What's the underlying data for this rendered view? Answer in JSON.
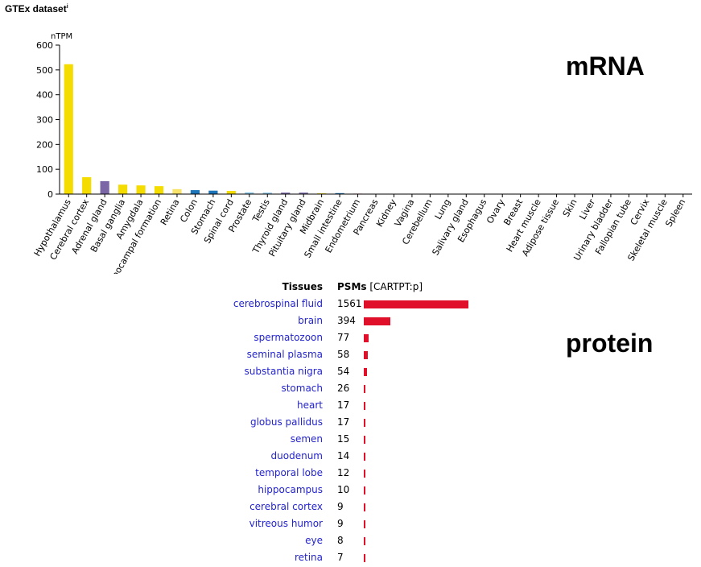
{
  "chart_data": {
    "type": "bar",
    "title": "GTEx dataset",
    "title_sup": "i",
    "ylabel": "nTPM",
    "ylim": [
      0,
      600
    ],
    "yticks": [
      0,
      100,
      200,
      300,
      400,
      500,
      600
    ],
    "grid": false,
    "annotation": "mRNA",
    "categories": [
      "Hypothalamus",
      "Cerebral cortex",
      "Adrenal gland",
      "Basal ganglia",
      "Amygdala",
      "Hippocampal formation",
      "Retina",
      "Colon",
      "Stomach",
      "Spinal cord",
      "Prostate",
      "Testis",
      "Thyroid gland",
      "Pituitary gland",
      "Midbrain",
      "Small intestine",
      "Endometrium",
      "Pancreas",
      "Kidney",
      "Vagina",
      "Cerebellum",
      "Lung",
      "Salivary gland",
      "Esophagus",
      "Ovary",
      "Breast",
      "Heart muscle",
      "Adipose tissue",
      "Skin",
      "Liver",
      "Urinary bladder",
      "Fallopian tube",
      "Cervix",
      "Skeletal muscle",
      "Spleen"
    ],
    "values": [
      523,
      68,
      52,
      38,
      35,
      32,
      20,
      16,
      14,
      13,
      7,
      6,
      6,
      6,
      3,
      4,
      2,
      1,
      0.5,
      0.5,
      0.5,
      0.5,
      0.3,
      0.3,
      0.3,
      0.3,
      0.3,
      0.3,
      0.3,
      0.3,
      0.3,
      0.3,
      0.3,
      0.3,
      0.3
    ],
    "colors": [
      "#f5dc00",
      "#f5dc00",
      "#7b67a6",
      "#f5dc00",
      "#f5dc00",
      "#f5dc00",
      "#f8e36a",
      "#1c75b8",
      "#1c75b8",
      "#f5dc00",
      "#8cc7e6",
      "#8cc7e6",
      "#7b67a6",
      "#7b67a6",
      "#f5dc00",
      "#1c75b8",
      "#e07c8e",
      "#8cc7e6",
      "#8cc7e6",
      "#e07c8e",
      "#f5dc00",
      "#8cc7e6",
      "#1c75b8",
      "#1c75b8",
      "#e07c8e",
      "#e07c8e",
      "#e07c8e",
      "#8cc7e6",
      "#8cc7e6",
      "#8cc7e6",
      "#8cc7e6",
      "#e07c8e",
      "#e07c8e",
      "#e07c8e",
      "#8cc7e6"
    ]
  },
  "protein": {
    "annotation": "protein",
    "header_tissues": "Tissues",
    "header_psms": "PSMs",
    "header_gene": "[CARTPT:p]",
    "bar_color": "#e0102a",
    "rows": [
      {
        "tissue": "cerebrospinal fluid",
        "value": 1561
      },
      {
        "tissue": "brain",
        "value": 394
      },
      {
        "tissue": "spermatozoon",
        "value": 77
      },
      {
        "tissue": "seminal plasma",
        "value": 58
      },
      {
        "tissue": "substantia nigra",
        "value": 54
      },
      {
        "tissue": "stomach",
        "value": 26
      },
      {
        "tissue": "heart",
        "value": 17
      },
      {
        "tissue": "globus pallidus",
        "value": 17
      },
      {
        "tissue": "semen",
        "value": 15
      },
      {
        "tissue": "duodenum",
        "value": 14
      },
      {
        "tissue": "temporal lobe",
        "value": 12
      },
      {
        "tissue": "hippocampus",
        "value": 10
      },
      {
        "tissue": "cerebral cortex",
        "value": 9
      },
      {
        "tissue": "vitreous humor",
        "value": 9
      },
      {
        "tissue": "eye",
        "value": 8
      },
      {
        "tissue": "retina",
        "value": 7
      }
    ]
  }
}
